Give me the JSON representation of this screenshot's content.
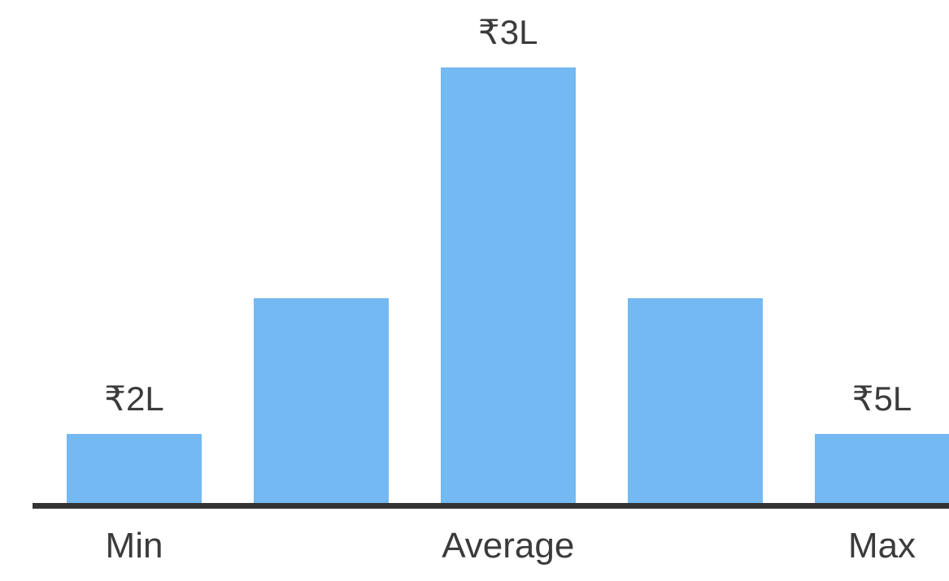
{
  "chart_data": {
    "type": "bar",
    "description": "Salary range distribution chart with min, average and max markers",
    "categories": [
      "Min",
      "",
      "Average",
      "",
      "Max"
    ],
    "x_axis_labels": [
      "Min",
      "Average",
      "Max"
    ],
    "value_labels": [
      "₹2L",
      "",
      "₹3L",
      "",
      "₹5L"
    ],
    "values_lakhs": {
      "min": 2,
      "average": 3,
      "max": 5
    },
    "currency_unit": "₹ Lakhs (L)",
    "bars": [
      {
        "value_label": "₹2L",
        "axis_label": "Min",
        "relative_height": 0.159
      },
      {
        "value_label": "",
        "axis_label": "",
        "relative_height": 0.47
      },
      {
        "value_label": "₹3L",
        "axis_label": "Average",
        "relative_height": 1.0
      },
      {
        "value_label": "",
        "axis_label": "",
        "relative_height": 0.47
      },
      {
        "value_label": "₹5L",
        "axis_label": "Max",
        "relative_height": 0.159
      }
    ],
    "y_axis_visible": false,
    "gridlines": false,
    "legend": null,
    "value_labels_position": "above-bars",
    "colors": {
      "bar_fill": "#74B9F2",
      "axis_line": "#333333",
      "text": "#3B3B3B",
      "background": "#FFFFFF"
    }
  }
}
